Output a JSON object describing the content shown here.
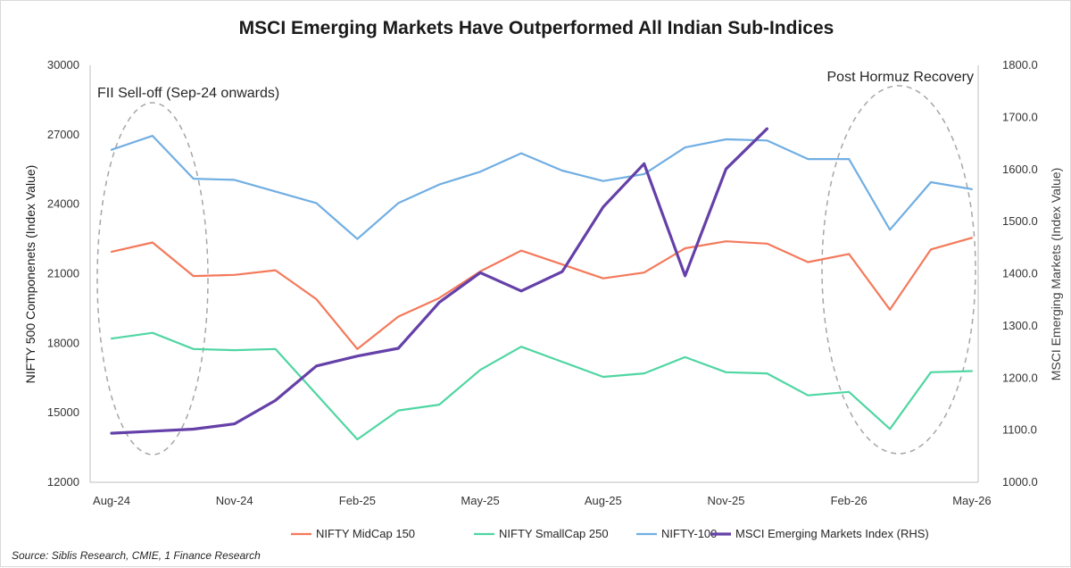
{
  "chart_data": {
    "type": "line",
    "title": "MSCI Emerging Markets Have Outperformed All Indian Sub-Indices",
    "ylabel": "NIFTY 500 Componenets (Index Value)",
    "ylabel_right": "MSCI Emerging Markets (Index Value)",
    "ylim": [
      12000,
      30000
    ],
    "ylim_right": [
      1000,
      1800
    ],
    "yticks": [
      "12000",
      "15000",
      "18000",
      "21000",
      "24000",
      "27000",
      "30000"
    ],
    "yticks_right": [
      "1000.0",
      "1100.0",
      "1200.0",
      "1300.0",
      "1400.0",
      "1500.0",
      "1600.0",
      "1700.0",
      "1800.0"
    ],
    "x": [
      "Aug-24",
      "Sep-24",
      "Oct-24",
      "Nov-24",
      "Dec-24",
      "Jan-25",
      "Feb-25",
      "Mar-25",
      "Apr-25",
      "May-25",
      "Jun-25",
      "Jul-25",
      "Aug-25",
      "Sep-25",
      "Oct-25",
      "Nov-25",
      "Dec-25",
      "Jan-26",
      "Feb-26",
      "Mar-26",
      "Apr-26",
      "May-26"
    ],
    "xtick_labels": [
      "Aug-24",
      "Nov-24",
      "Feb-25",
      "May-25",
      "Aug-25",
      "Nov-25",
      "Feb-26",
      "May-26"
    ],
    "grid": false,
    "legend_position": "bottom",
    "series": [
      {
        "name": "NIFTY MidCap 150",
        "axis": "left",
        "color": "#f4795b",
        "values": [
          21950,
          22350,
          20900,
          20950,
          21150,
          19900,
          17750,
          19150,
          19950,
          21100,
          22000,
          21400,
          20800,
          21050,
          22100,
          22400,
          22300,
          21500,
          21850,
          19450,
          22050,
          22550
        ]
      },
      {
        "name": "NIFTY SmallCap 250",
        "axis": "left",
        "color": "#4fd6a2",
        "values": [
          18200,
          18450,
          17750,
          17700,
          17750,
          15800,
          13850,
          15100,
          15350,
          16850,
          17850,
          17200,
          16550,
          16700,
          17400,
          16750,
          16700,
          15750,
          15900,
          14300,
          16750,
          16800
        ]
      },
      {
        "name": "NIFTY-100",
        "axis": "left",
        "color": "#71aee3",
        "values": [
          26350,
          26950,
          25100,
          25050,
          24550,
          24050,
          22500,
          24050,
          24850,
          25400,
          26200,
          25450,
          25000,
          25300,
          26450,
          26800,
          26750,
          25950,
          25950,
          22900,
          24950,
          24650
        ]
      },
      {
        "name": "MSCI Emerging Markets Index (RHS)",
        "axis": "right",
        "color": "#6440a8",
        "values": [
          1094,
          1098,
          1102,
          1112,
          1157,
          1223,
          1242,
          1257,
          1345,
          1402,
          1367,
          1404,
          1528,
          1611,
          1396,
          1601,
          1678,
          null,
          null,
          null,
          null,
          null
        ]
      }
    ],
    "annotations": [
      {
        "text": "FII Sell-off (Sep-24 onwards)"
      },
      {
        "text": "Post Hormuz Recovery"
      }
    ],
    "source": "Source: Siblis Research, CMIE, 1 Finance Research"
  }
}
